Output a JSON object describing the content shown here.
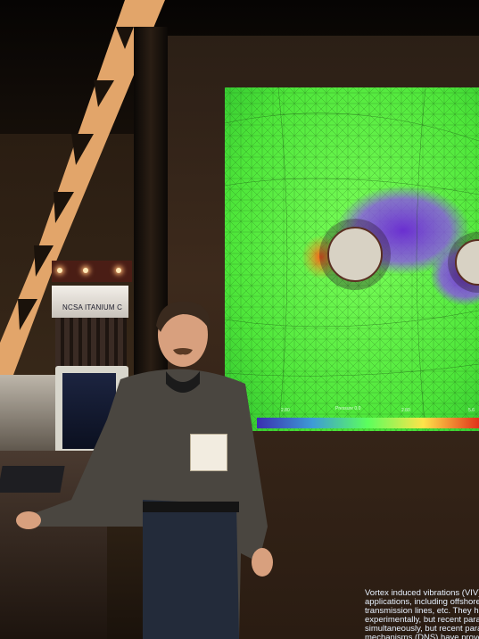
{
  "scene": {
    "sign_text": "NCSA ITANIUM C",
    "viz_colorbar_labels": [
      "2.80",
      "Pressure\n0.0",
      "2.80",
      "5.6"
    ],
    "badge_text": "",
    "panel_text": "Vortex induced vibrations (VIV)\napplications, including offshore\ntransmission lines, etc. They ha\nexperimentally, but recent para\nsimultaneously, but recent para\nmechanisms (DNS) have prove\nto investigation of VIV\nconductive of"
  },
  "colors": {
    "viz_green": "#5cff3a",
    "viz_purple": "#7b3ad8",
    "viz_orange": "#ff7a1a",
    "booth_brown": "#3d2a1c"
  }
}
